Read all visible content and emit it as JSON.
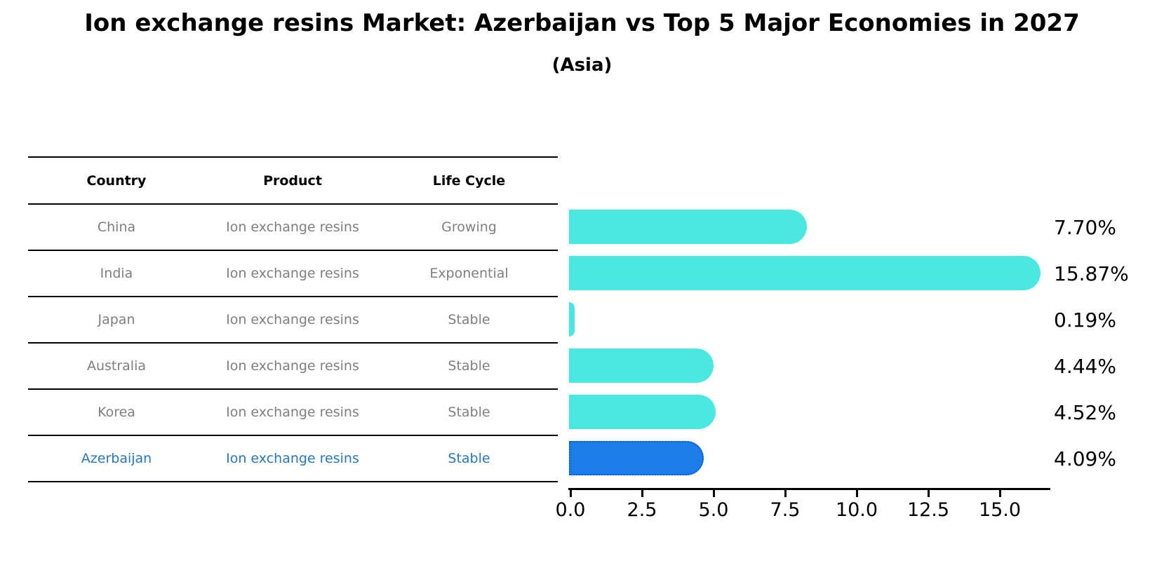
{
  "title": "Ion exchange resins Market: Azerbaijan vs Top 5 Major Economies in 2027",
  "subtitle": "(Asia)",
  "table": {
    "headers": [
      "Country",
      "Product",
      "Life Cycle"
    ],
    "rows": [
      {
        "country": "China",
        "product": "Ion exchange resins",
        "life_cycle": "Growing",
        "highlight": false
      },
      {
        "country": "India",
        "product": "Ion exchange resins",
        "life_cycle": "Exponential",
        "highlight": false
      },
      {
        "country": "Japan",
        "product": "Ion exchange resins",
        "life_cycle": "Stable",
        "highlight": false
      },
      {
        "country": "Australia",
        "product": "Ion exchange resins",
        "life_cycle": "Stable",
        "highlight": false
      },
      {
        "country": "Korea",
        "product": "Ion exchange resins",
        "life_cycle": "Stable",
        "highlight": false
      },
      {
        "country": "Azerbaijan",
        "product": "Ion exchange resins",
        "life_cycle": "Stable",
        "highlight": true
      }
    ]
  },
  "chart_data": {
    "type": "bar",
    "orientation": "horizontal",
    "title": "Ion exchange resins Market: Azerbaijan vs Top 5 Major Economies in 2027",
    "subtitle": "(Asia)",
    "categories": [
      "China",
      "India",
      "Japan",
      "Australia",
      "Korea",
      "Azerbaijan"
    ],
    "values": [
      7.7,
      15.87,
      0.19,
      4.44,
      4.52,
      4.09
    ],
    "value_labels": [
      "7.70%",
      "15.87%",
      "0.19%",
      "4.44%",
      "4.52%",
      "4.09%"
    ],
    "x_ticks": [
      "0.0",
      "2.5",
      "5.0",
      "7.5",
      "10.0",
      "12.5",
      "15.0"
    ],
    "xlim": [
      0,
      16.8
    ],
    "grid": false,
    "legend": "none",
    "highlight_category": "Azerbaijan"
  },
  "colors": {
    "bar_default": "#4BE8E2",
    "bar_highlight": "#1C7DE8",
    "bar_highlight_border": "#0B5BD6",
    "highlight_text": "#2878BE",
    "table_text": "#7F7F7F",
    "header_text": "#000000",
    "axis": "#000000"
  }
}
